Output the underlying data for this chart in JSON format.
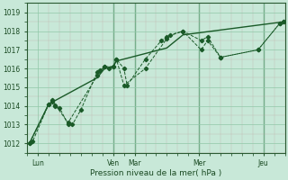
{
  "xlabel": "Pression niveau de la mer( hPa )",
  "ylim": [
    1011.5,
    1019.5
  ],
  "yticks": [
    1012,
    1013,
    1014,
    1015,
    1016,
    1017,
    1018,
    1019
  ],
  "bg_color": "#c8e8d8",
  "grid_major_color": "#90c8a8",
  "grid_minor_color": "#c0a0a0",
  "line_color": "#1a5a28",
  "xlim": [
    0,
    24
  ],
  "vlines": [
    8.0,
    10.0,
    16.0,
    22.0
  ],
  "xtick_positions": [
    1.0,
    8.0,
    10.0,
    16.0,
    22.0
  ],
  "xtick_labels": [
    "Lun",
    "Ven",
    "Mar",
    "Mer",
    "Jeu"
  ],
  "series1_x": [
    0.2,
    0.5,
    2.0,
    2.3,
    2.6,
    3.0,
    3.8,
    4.2,
    5.0,
    6.5,
    6.8,
    7.2,
    7.6,
    8.0,
    8.3,
    9.0,
    9.3,
    11.0,
    12.5,
    13.0,
    14.5,
    16.2,
    16.8,
    18.0,
    21.5,
    23.5,
    23.9
  ],
  "series1_y": [
    1012.0,
    1012.1,
    1014.1,
    1014.2,
    1014.0,
    1013.9,
    1013.0,
    1013.0,
    1013.8,
    1015.8,
    1015.9,
    1016.1,
    1016.0,
    1016.1,
    1016.5,
    1016.0,
    1015.1,
    1016.5,
    1017.5,
    1017.7,
    1018.0,
    1017.0,
    1017.5,
    1016.6,
    1017.0,
    1018.4,
    1018.5
  ],
  "series2_x": [
    0.2,
    2.0,
    2.3,
    2.6,
    3.8,
    6.5,
    7.2,
    8.0,
    8.3,
    9.0,
    11.0,
    13.0,
    13.3,
    14.5,
    16.2,
    16.8,
    18.0,
    21.5,
    23.5,
    23.9
  ],
  "series2_y": [
    1012.0,
    1014.1,
    1014.3,
    1014.05,
    1013.1,
    1015.6,
    1016.1,
    1016.1,
    1016.5,
    1015.1,
    1016.0,
    1017.6,
    1017.8,
    1018.0,
    1017.5,
    1017.7,
    1016.6,
    1017.0,
    1018.4,
    1018.5
  ],
  "series3_x": [
    0.2,
    2.0,
    6.5,
    7.2,
    8.0,
    8.3,
    13.0,
    14.5,
    23.9
  ],
  "series3_y": [
    1012.0,
    1014.1,
    1015.5,
    1016.0,
    1016.1,
    1016.4,
    1017.1,
    1017.8,
    1018.5
  ]
}
